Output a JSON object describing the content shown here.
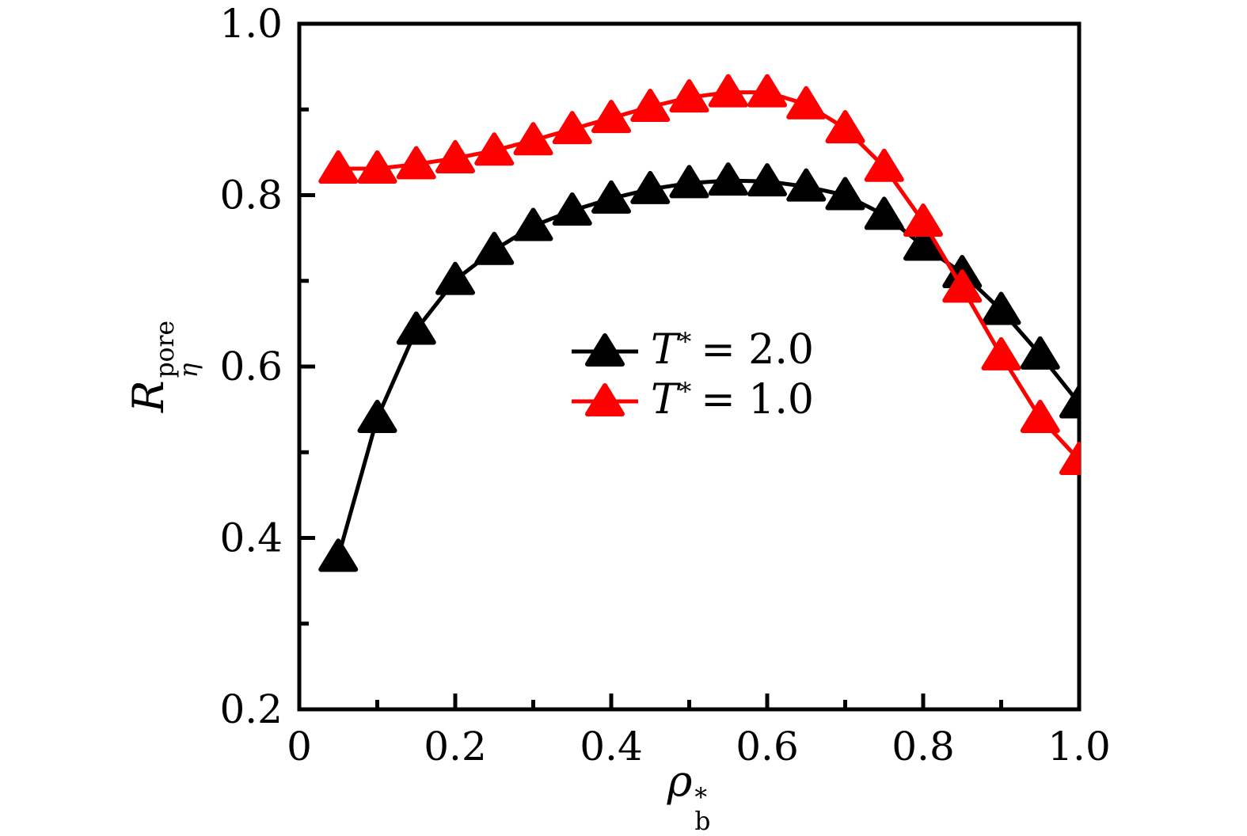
{
  "figure": {
    "background": "#ffffff",
    "frame_color": "#000000"
  },
  "chart_data": {
    "type": "line",
    "title": "",
    "marker": "triangle-up",
    "grid": false,
    "frame": "box",
    "xlabel": {
      "base": "ρ",
      "sup": "*",
      "sub": "b"
    },
    "ylabel": {
      "base": "R",
      "sup": "pore",
      "sub": "η"
    },
    "xlim": [
      0,
      1.0
    ],
    "ylim": [
      0.2,
      1.0
    ],
    "x_major_ticks": [
      0,
      0.2,
      0.4,
      0.6,
      0.8,
      1.0
    ],
    "x_tick_labels": [
      "0",
      "0.2",
      "0.4",
      "0.6",
      "0.8",
      "1.0"
    ],
    "x_minor_ticks": [
      0.1,
      0.3,
      0.5,
      0.7,
      0.9
    ],
    "y_major_ticks": [
      0.2,
      0.4,
      0.6,
      0.8,
      1.0
    ],
    "y_tick_labels": [
      "0.2",
      "0.4",
      "0.6",
      "0.8",
      "1.0"
    ],
    "y_minor_ticks": [
      0.3,
      0.5,
      0.7,
      0.9
    ],
    "legend_position": "inside-center-left",
    "x": [
      0.05,
      0.1,
      0.15,
      0.2,
      0.25,
      0.3,
      0.35,
      0.4,
      0.45,
      0.5,
      0.55,
      0.6,
      0.65,
      0.7,
      0.75,
      0.8,
      0.85,
      0.9,
      0.95,
      1.0
    ],
    "series": [
      {
        "name": "T* = 2.0",
        "label_parts": {
          "var": "T",
          "sup": "*",
          "rest": "= 2.0"
        },
        "color": "#000000",
        "values": [
          0.378,
          0.54,
          0.643,
          0.701,
          0.736,
          0.764,
          0.782,
          0.796,
          0.807,
          0.814,
          0.817,
          0.816,
          0.81,
          0.8,
          0.777,
          0.741,
          0.709,
          0.666,
          0.614,
          0.557
        ]
      },
      {
        "name": "T* = 1.0",
        "label_parts": {
          "var": "T",
          "sup": "*",
          "rest": "= 1.0"
        },
        "color": "#ff0000",
        "values": [
          0.831,
          0.831,
          0.836,
          0.843,
          0.852,
          0.864,
          0.877,
          0.89,
          0.903,
          0.914,
          0.92,
          0.92,
          0.906,
          0.878,
          0.833,
          0.769,
          0.692,
          0.613,
          0.54,
          0.491
        ]
      }
    ]
  }
}
